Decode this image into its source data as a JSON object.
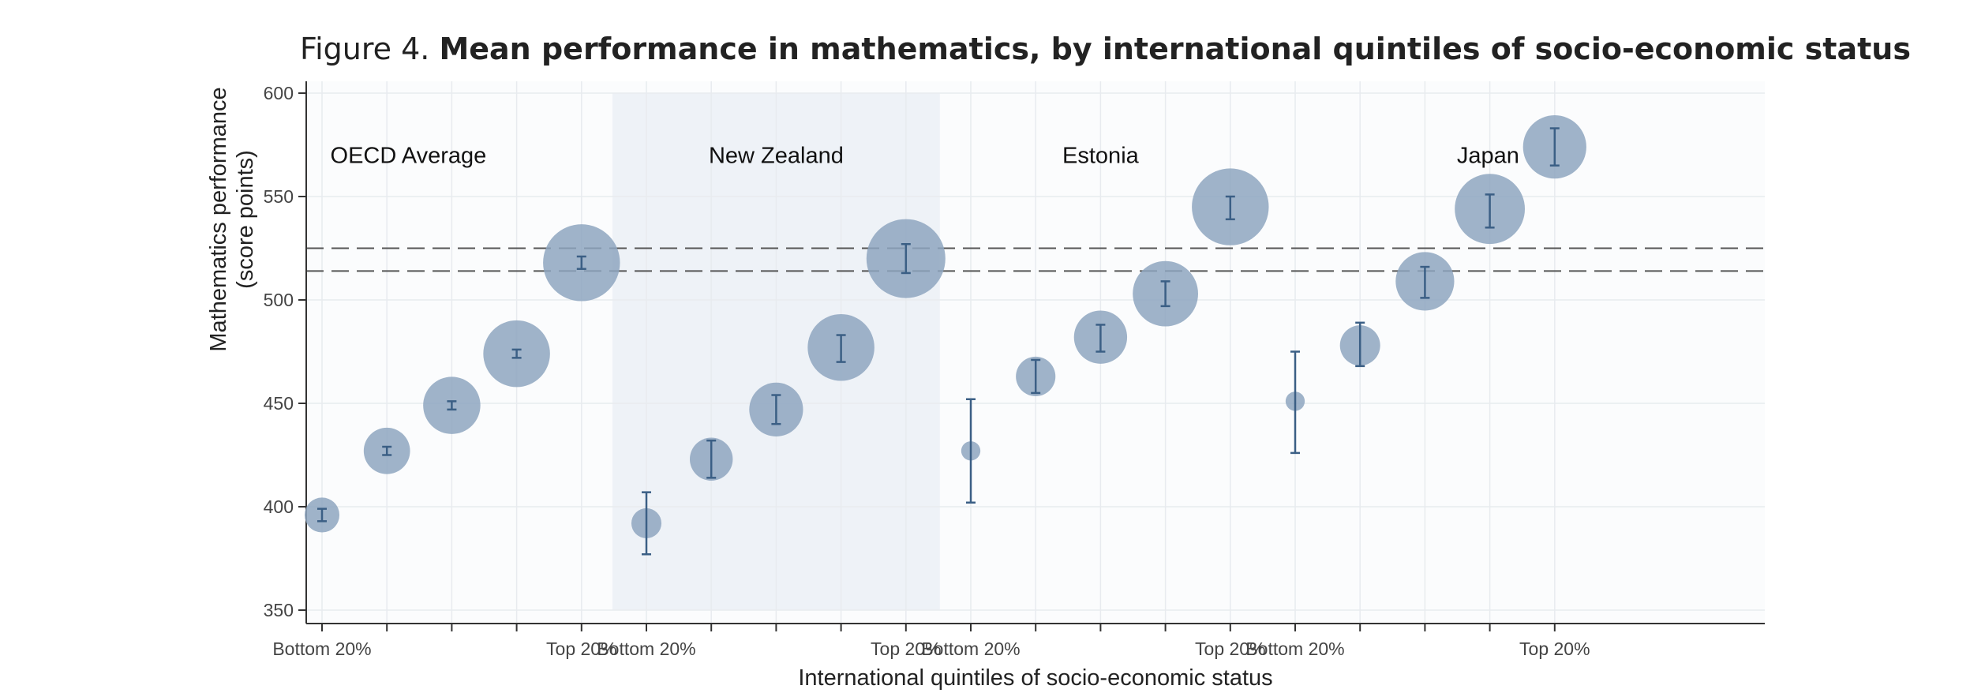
{
  "figure": {
    "prefix": "Figure 4.",
    "title": "Mean performance in mathematics, by international quintiles of socio-economic status"
  },
  "chart_data": {
    "type": "scatter",
    "subtype": "bubble-with-error-bars",
    "xlabel": "International quintiles of socio-economic status",
    "ylabel_lines": [
      "Mathematics performance",
      "(score points)"
    ],
    "ylim": [
      350,
      600
    ],
    "yticks": [
      350,
      400,
      450,
      500,
      550,
      600
    ],
    "grid": true,
    "reference_lines": [
      525,
      514
    ],
    "shaded_group": "New Zealand",
    "colors": {
      "bubble": "#8ea6c0",
      "error_bar": "#3b5f85",
      "axis": "#333333",
      "shade": "#eef2f7"
    },
    "quintile_labels": [
      "Bottom 20%",
      "",
      "",
      "",
      "Top 20%"
    ],
    "groups": [
      {
        "name": "OECD Average",
        "points": [
          {
            "q": 1,
            "mean": 396,
            "low": 393,
            "high": 399,
            "size": 0.35
          },
          {
            "q": 2,
            "mean": 427,
            "low": 425,
            "high": 429,
            "size": 0.52
          },
          {
            "q": 3,
            "mean": 449,
            "low": 447,
            "high": 451,
            "size": 0.68
          },
          {
            "q": 4,
            "mean": 474,
            "low": 472,
            "high": 476,
            "size": 0.82
          },
          {
            "q": 5,
            "mean": 518,
            "low": 515,
            "high": 521,
            "size": 0.97
          }
        ]
      },
      {
        "name": "New Zealand",
        "points": [
          {
            "q": 1,
            "mean": 392,
            "low": 377,
            "high": 407,
            "size": 0.28
          },
          {
            "q": 2,
            "mean": 423,
            "low": 414,
            "high": 432,
            "size": 0.47
          },
          {
            "q": 3,
            "mean": 447,
            "low": 440,
            "high": 454,
            "size": 0.63
          },
          {
            "q": 4,
            "mean": 477,
            "low": 470,
            "high": 483,
            "size": 0.82
          },
          {
            "q": 5,
            "mean": 520,
            "low": 513,
            "high": 527,
            "size": 1.0
          }
        ]
      },
      {
        "name": "Estonia",
        "points": [
          {
            "q": 1,
            "mean": 427,
            "low": 402,
            "high": 452,
            "size": 0.12
          },
          {
            "q": 2,
            "mean": 463,
            "low": 455,
            "high": 471,
            "size": 0.42
          },
          {
            "q": 3,
            "mean": 482,
            "low": 475,
            "high": 488,
            "size": 0.62
          },
          {
            "q": 4,
            "mean": 503,
            "low": 497,
            "high": 509,
            "size": 0.8
          },
          {
            "q": 5,
            "mean": 545,
            "low": 539,
            "high": 550,
            "size": 0.97
          }
        ]
      },
      {
        "name": "Japan",
        "points": [
          {
            "q": 1,
            "mean": 451,
            "low": 426,
            "high": 475,
            "size": 0.12
          },
          {
            "q": 2,
            "mean": 478,
            "low": 468,
            "high": 489,
            "size": 0.43
          },
          {
            "q": 3,
            "mean": 509,
            "low": 501,
            "high": 516,
            "size": 0.7
          },
          {
            "q": 4,
            "mean": 544,
            "low": 535,
            "high": 551,
            "size": 0.87
          },
          {
            "q": 5,
            "mean": 574,
            "low": 565,
            "high": 583,
            "size": 0.77
          }
        ]
      }
    ]
  }
}
